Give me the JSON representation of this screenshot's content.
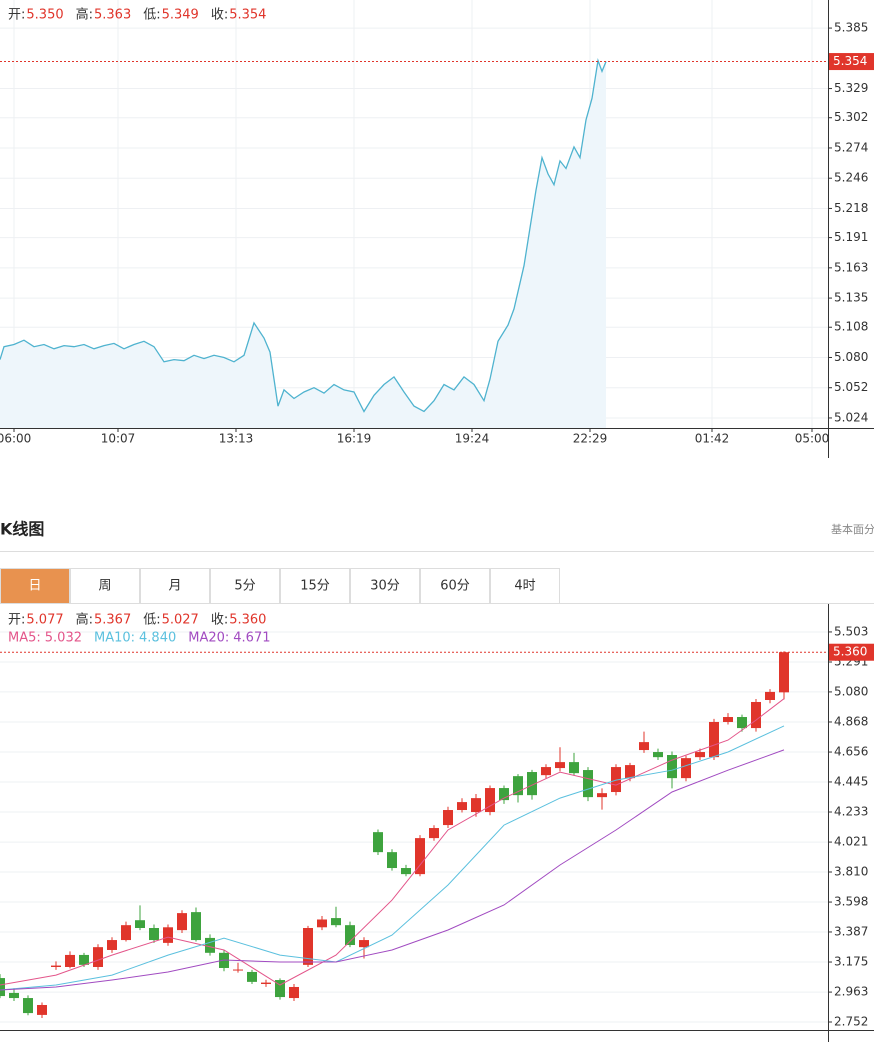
{
  "tabs": [
    "日",
    "周",
    "月",
    "5分",
    "15分",
    "30分",
    "60分",
    "4时"
  ],
  "active_tab": 0,
  "active_tab_color": "#e8924f",
  "chart_data": [
    {
      "type": "line",
      "header": [
        {
          "label": "开:",
          "value": "5.350"
        },
        {
          "label": "高:",
          "value": "5.363"
        },
        {
          "label": "低:",
          "value": "5.349"
        },
        {
          "label": "收:",
          "value": "5.354"
        }
      ],
      "header_value_color": "#e0352b",
      "color": "#4fb3cf",
      "area_color": "#eef6fb",
      "x": [
        -7,
        -5,
        0,
        5,
        10,
        15,
        20,
        25,
        30,
        35,
        40,
        45,
        50,
        55,
        60,
        65,
        70,
        75,
        80,
        85,
        90,
        95,
        100,
        105,
        110,
        115,
        120,
        125,
        128,
        130,
        132,
        135,
        140,
        145,
        150,
        155,
        160,
        165,
        170,
        175,
        180,
        185,
        190,
        195,
        200,
        205,
        210,
        215,
        220,
        225,
        230,
        235,
        238,
        242,
        247,
        250,
        255,
        258,
        261,
        264,
        267,
        270,
        273,
        276,
        280,
        283,
        286,
        289,
        292,
        294,
        296
      ],
      "values": [
        5.078,
        5.09,
        5.092,
        5.096,
        5.09,
        5.092,
        5.088,
        5.091,
        5.09,
        5.092,
        5.088,
        5.091,
        5.093,
        5.088,
        5.092,
        5.095,
        5.09,
        5.076,
        5.078,
        5.077,
        5.082,
        5.079,
        5.082,
        5.08,
        5.076,
        5.082,
        5.112,
        5.098,
        5.085,
        5.06,
        5.035,
        5.05,
        5.042,
        5.048,
        5.052,
        5.047,
        5.055,
        5.05,
        5.048,
        5.03,
        5.045,
        5.055,
        5.062,
        5.048,
        5.035,
        5.03,
        5.04,
        5.055,
        5.05,
        5.062,
        5.055,
        5.04,
        5.06,
        5.095,
        5.11,
        5.125,
        5.165,
        5.2,
        5.235,
        5.265,
        5.25,
        5.24,
        5.262,
        5.255,
        5.275,
        5.265,
        5.3,
        5.32,
        5.355,
        5.345,
        5.354
      ],
      "xlim": [
        -7,
        407
      ],
      "xticks": [
        {
          "value": 0,
          "label": "06:00"
        },
        {
          "value": 52,
          "label": "10:07"
        },
        {
          "value": 111,
          "label": "13:13"
        },
        {
          "value": 170,
          "label": "16:19"
        },
        {
          "value": 229,
          "label": "19:24"
        },
        {
          "value": 288,
          "label": "22:29"
        },
        {
          "value": 349,
          "label": "01:42"
        },
        {
          "value": 399,
          "label": "05:00"
        }
      ],
      "ylim": [
        5.0147,
        5.411
      ],
      "yticks": [
        5.385,
        5.329,
        5.302,
        5.274,
        5.246,
        5.218,
        5.191,
        5.163,
        5.135,
        5.108,
        {
          "value": 5.08,
          "label": "5.080"
        },
        5.052,
        5.024
      ],
      "last": {
        "value": 5.354,
        "label": "5.354"
      },
      "last_color": "#e0352b",
      "grid": true
    },
    {
      "type": "candlestick",
      "title": "K线图",
      "side_link": "基本面分",
      "header": [
        {
          "label": "开:",
          "value": "5.077"
        },
        {
          "label": "高:",
          "value": "5.367"
        },
        {
          "label": "低:",
          "value": "5.027"
        },
        {
          "label": "收:",
          "value": "5.360"
        }
      ],
      "header_value_color": "#e0352b",
      "up_color": "#e0352b",
      "down_color": "#3ea33e",
      "open": [
        3.062,
        2.957,
        2.921,
        2.802,
        3.14,
        3.14,
        3.225,
        3.14,
        3.26,
        3.33,
        3.47,
        3.415,
        3.31,
        3.4,
        3.527,
        3.345,
        3.24,
        3.115,
        3.105,
        3.02,
        3.048,
        2.921,
        3.155,
        3.42,
        3.485,
        3.435,
        3.28,
        4.091,
        3.95,
        3.838,
        3.795,
        4.049,
        4.141,
        4.247,
        4.233,
        4.233,
        4.402,
        4.486,
        4.515,
        4.493,
        4.543,
        4.585,
        4.529,
        4.338,
        4.374,
        4.472,
        4.67,
        4.656,
        4.635,
        4.472,
        4.62,
        4.62,
        4.868,
        4.903,
        4.825,
        5.023,
        5.077
      ],
      "high": [
        3.09,
        2.99,
        2.94,
        2.89,
        3.18,
        3.25,
        3.24,
        3.3,
        3.35,
        3.46,
        3.575,
        3.44,
        3.44,
        3.54,
        3.56,
        3.37,
        3.26,
        3.17,
        3.12,
        3.05,
        3.06,
        3.02,
        3.43,
        3.5,
        3.565,
        3.46,
        3.35,
        4.11,
        3.97,
        3.86,
        4.07,
        4.14,
        4.27,
        4.33,
        4.36,
        4.42,
        4.42,
        4.5,
        4.53,
        4.57,
        4.69,
        4.65,
        4.55,
        4.4,
        4.57,
        4.58,
        4.8,
        4.68,
        4.66,
        4.63,
        4.68,
        4.89,
        4.93,
        4.92,
        5.03,
        5.1,
        5.367
      ],
      "low": [
        2.92,
        2.9,
        2.8,
        2.78,
        3.12,
        3.13,
        3.14,
        3.12,
        3.24,
        3.32,
        3.4,
        3.31,
        3.29,
        3.38,
        3.32,
        3.22,
        3.11,
        3.1,
        3.02,
        3.0,
        2.91,
        2.9,
        3.14,
        3.4,
        3.42,
        3.28,
        3.2,
        3.93,
        3.82,
        3.78,
        3.78,
        4.03,
        4.12,
        4.23,
        4.2,
        4.21,
        4.29,
        4.3,
        4.32,
        4.47,
        4.52,
        4.49,
        4.31,
        4.25,
        4.35,
        4.45,
        4.65,
        4.6,
        4.4,
        4.45,
        4.6,
        4.6,
        4.85,
        4.8,
        4.8,
        5.0,
        5.027
      ],
      "close": [
        2.935,
        2.921,
        2.815,
        2.872,
        3.15,
        3.225,
        3.155,
        3.28,
        3.33,
        3.435,
        3.415,
        3.33,
        3.42,
        3.52,
        3.33,
        3.24,
        3.133,
        3.122,
        3.035,
        3.03,
        2.928,
        2.999,
        3.415,
        3.475,
        3.435,
        3.295,
        3.33,
        3.95,
        3.838,
        3.795,
        4.049,
        4.12,
        4.247,
        4.303,
        4.331,
        4.402,
        4.317,
        4.352,
        4.352,
        4.55,
        4.585,
        4.507,
        4.338,
        4.366,
        4.55,
        4.564,
        4.726,
        4.62,
        4.472,
        4.613,
        4.656,
        4.868,
        4.903,
        4.825,
        5.009,
        5.08,
        5.36
      ],
      "series": [
        {
          "legend": "MA5:",
          "current": "5.032",
          "color": "#e3558a",
          "x": [
            0,
            4,
            8,
            12,
            16,
            20,
            24,
            28,
            32,
            36,
            40,
            44,
            48,
            52,
            54,
            56
          ],
          "values": [
            3.013,
            3.083,
            3.224,
            3.351,
            3.26,
            3.013,
            3.224,
            3.612,
            4.106,
            4.331,
            4.514,
            4.423,
            4.599,
            4.74,
            4.881,
            5.032
          ]
        },
        {
          "legend": "MA10:",
          "current": "4.840",
          "color": "#5bc0de",
          "x": [
            0,
            4,
            8,
            12,
            16,
            20,
            24,
            28,
            32,
            36,
            40,
            44,
            48,
            52,
            56
          ],
          "values": [
            2.978,
            3.013,
            3.083,
            3.224,
            3.344,
            3.224,
            3.175,
            3.365,
            3.718,
            4.141,
            4.331,
            4.458,
            4.528,
            4.656,
            4.84
          ]
        },
        {
          "legend": "MA20:",
          "current": "4.671",
          "color": "#a14bc1",
          "x": [
            0,
            4,
            8,
            12,
            16,
            20,
            24,
            28,
            32,
            36,
            40,
            44,
            48,
            52,
            56
          ],
          "values": [
            2.978,
            2.999,
            3.048,
            3.105,
            3.189,
            3.175,
            3.175,
            3.26,
            3.401,
            3.577,
            3.859,
            4.106,
            4.374,
            4.528,
            4.671
          ]
        }
      ],
      "ylim": [
        2.611,
        5.693
      ],
      "yticks": [
        5.503,
        5.291,
        {
          "value": 5.08,
          "label": "5.080"
        },
        4.868,
        4.656,
        4.445,
        4.233,
        4.021,
        {
          "value": 3.81,
          "label": "3.810"
        },
        3.598,
        3.387,
        3.175,
        2.963,
        2.752
      ],
      "last": {
        "value": 5.36,
        "label": "5.360"
      },
      "last_color": "#e0352b",
      "grid": true
    }
  ]
}
